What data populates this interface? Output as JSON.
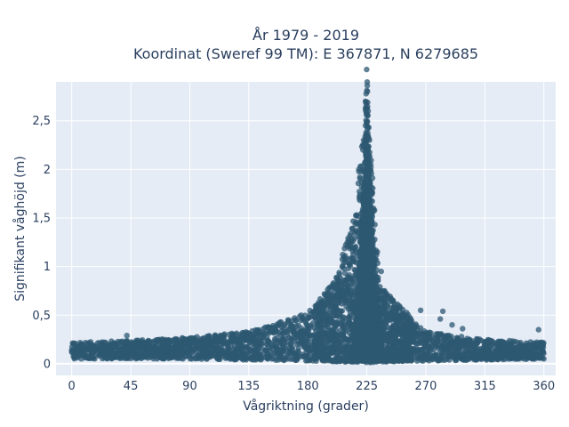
{
  "chart_data": {
    "type": "scatter",
    "title_line1": "År 1979 - 2019",
    "title_line2": "Koordinat (Sweref 99 TM): E 367871, N 6279685",
    "xlabel": "Vågriktning (grader)",
    "ylabel": "Signifikant våghöjd (m)",
    "xlim": [
      -12,
      369
    ],
    "ylim": [
      -0.12,
      2.9
    ],
    "x_ticks": [
      0,
      45,
      90,
      135,
      180,
      225,
      270,
      315,
      360
    ],
    "x_tick_labels": [
      "0",
      "45",
      "90",
      "135",
      "180",
      "225",
      "270",
      "315",
      "360"
    ],
    "y_ticks": [
      0,
      0.5,
      1,
      1.5,
      2,
      2.5
    ],
    "y_tick_labels": [
      "0",
      "0,5",
      "1",
      "1,5",
      "2",
      "2,5"
    ],
    "grid": true,
    "marker_color": "#2e5871",
    "plot_bgcolor": "#e5ecf6",
    "envelope": {
      "description_points": [
        {
          "x": 0,
          "y_lower": 0.05,
          "y_upper": 0.22
        },
        {
          "x": 45,
          "y_lower": 0.05,
          "y_upper": 0.24
        },
        {
          "x": 90,
          "y_lower": 0.05,
          "y_upper": 0.27
        },
        {
          "x": 135,
          "y_lower": 0.04,
          "y_upper": 0.33
        },
        {
          "x": 180,
          "y_lower": 0.03,
          "y_upper": 0.52
        },
        {
          "x": 200,
          "y_lower": 0.02,
          "y_upper": 0.85
        },
        {
          "x": 215,
          "y_lower": 0.02,
          "y_upper": 1.5
        },
        {
          "x": 225,
          "y_lower": 0.01,
          "y_upper": 2.8
        },
        {
          "x": 235,
          "y_lower": 0.02,
          "y_upper": 0.8
        },
        {
          "x": 270,
          "y_lower": 0.03,
          "y_upper": 0.33
        },
        {
          "x": 315,
          "y_lower": 0.04,
          "y_upper": 0.25
        },
        {
          "x": 360,
          "y_lower": 0.05,
          "y_upper": 0.22
        }
      ]
    },
    "outliers": [
      {
        "x": 225,
        "y": 2.81
      },
      {
        "x": 224,
        "y": 2.7
      },
      {
        "x": 226,
        "y": 2.6
      },
      {
        "x": 224,
        "y": 2.45
      },
      {
        "x": 227,
        "y": 2.3
      },
      {
        "x": 222,
        "y": 2.2
      },
      {
        "x": 228,
        "y": 2.05
      },
      {
        "x": 220,
        "y": 2.03
      },
      {
        "x": 221,
        "y": 1.82
      },
      {
        "x": 230,
        "y": 1.6
      },
      {
        "x": 219,
        "y": 1.35
      },
      {
        "x": 233,
        "y": 1.15
      },
      {
        "x": 236,
        "y": 0.95
      },
      {
        "x": 214,
        "y": 1.05
      },
      {
        "x": 240,
        "y": 0.72
      },
      {
        "x": 210,
        "y": 0.85
      },
      {
        "x": 266,
        "y": 0.55
      },
      {
        "x": 283,
        "y": 0.54
      },
      {
        "x": 281,
        "y": 0.46
      },
      {
        "x": 290,
        "y": 0.4
      },
      {
        "x": 298,
        "y": 0.36
      },
      {
        "x": 356,
        "y": 0.35
      },
      {
        "x": 42,
        "y": 0.29
      },
      {
        "x": 103,
        "y": 0.28
      },
      {
        "x": 120,
        "y": 0.3
      },
      {
        "x": 150,
        "y": 0.38
      },
      {
        "x": 165,
        "y": 0.45
      },
      {
        "x": 175,
        "y": 0.5
      },
      {
        "x": 250,
        "y": 0.45
      },
      {
        "x": 260,
        "y": 0.4
      }
    ]
  }
}
